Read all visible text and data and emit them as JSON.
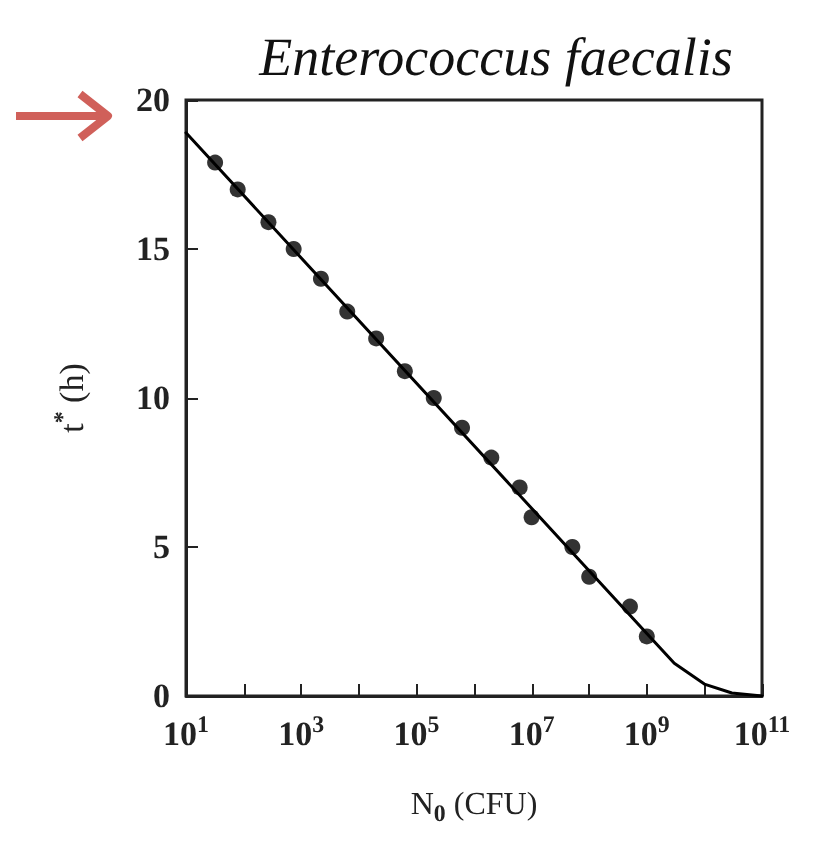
{
  "chart_data": {
    "type": "scatter",
    "title": "Enterococcus faecalis",
    "xlabel": "N$_{0}$ (CFU)",
    "ylabel": "t$^{*}$ (h)",
    "log": "x",
    "grid": false,
    "xlim": [
      10,
      100000000000
    ],
    "xticks": [
      {
        "value": 10,
        "label": "10$^{1}$"
      },
      {
        "value": 100,
        "label": null
      },
      {
        "value": 1000,
        "label": "10$^{3}$"
      },
      {
        "value": 10000,
        "label": null
      },
      {
        "value": 100000,
        "label": "10$^{5}$"
      },
      {
        "value": 1000000,
        "label": null
      },
      {
        "value": 10000000,
        "label": "10$^{7}$"
      },
      {
        "value": 100000000,
        "label": null
      },
      {
        "value": 1000000000,
        "label": "10$^{9}$"
      },
      {
        "value": 10000000000,
        "label": null
      },
      {
        "value": 100000000000,
        "label": "10$^{11}$"
      }
    ],
    "ylim": [
      0,
      20
    ],
    "yticks": [
      0,
      5,
      10,
      15,
      20
    ],
    "series": [
      {
        "marker": "circle",
        "color": "#000000",
        "x": [
          32,
          79,
          270,
          740,
          2200,
          6300,
          20000,
          63000,
          200000,
          620000,
          2000000,
          6200000,
          10000000,
          51000000,
          100000000,
          510000000,
          1000000000
        ],
        "values": [
          17.9,
          17.0,
          15.9,
          15.0,
          14.0,
          12.9,
          12.0,
          10.9,
          10.0,
          9.0,
          8.0,
          7.0,
          6.0,
          5.0,
          4.0,
          3.0,
          2.0
        ]
      },
      {
        "type": "line",
        "marker": "none",
        "color": "#000000",
        "line_style": "solid",
        "x": [
          10,
          1000000000,
          3000000000,
          10000000000,
          30000000000,
          100000000000
        ],
        "values": [
          18.9,
          2.1,
          1.1,
          0.4,
          0.1,
          0
        ]
      }
    ]
  }
}
